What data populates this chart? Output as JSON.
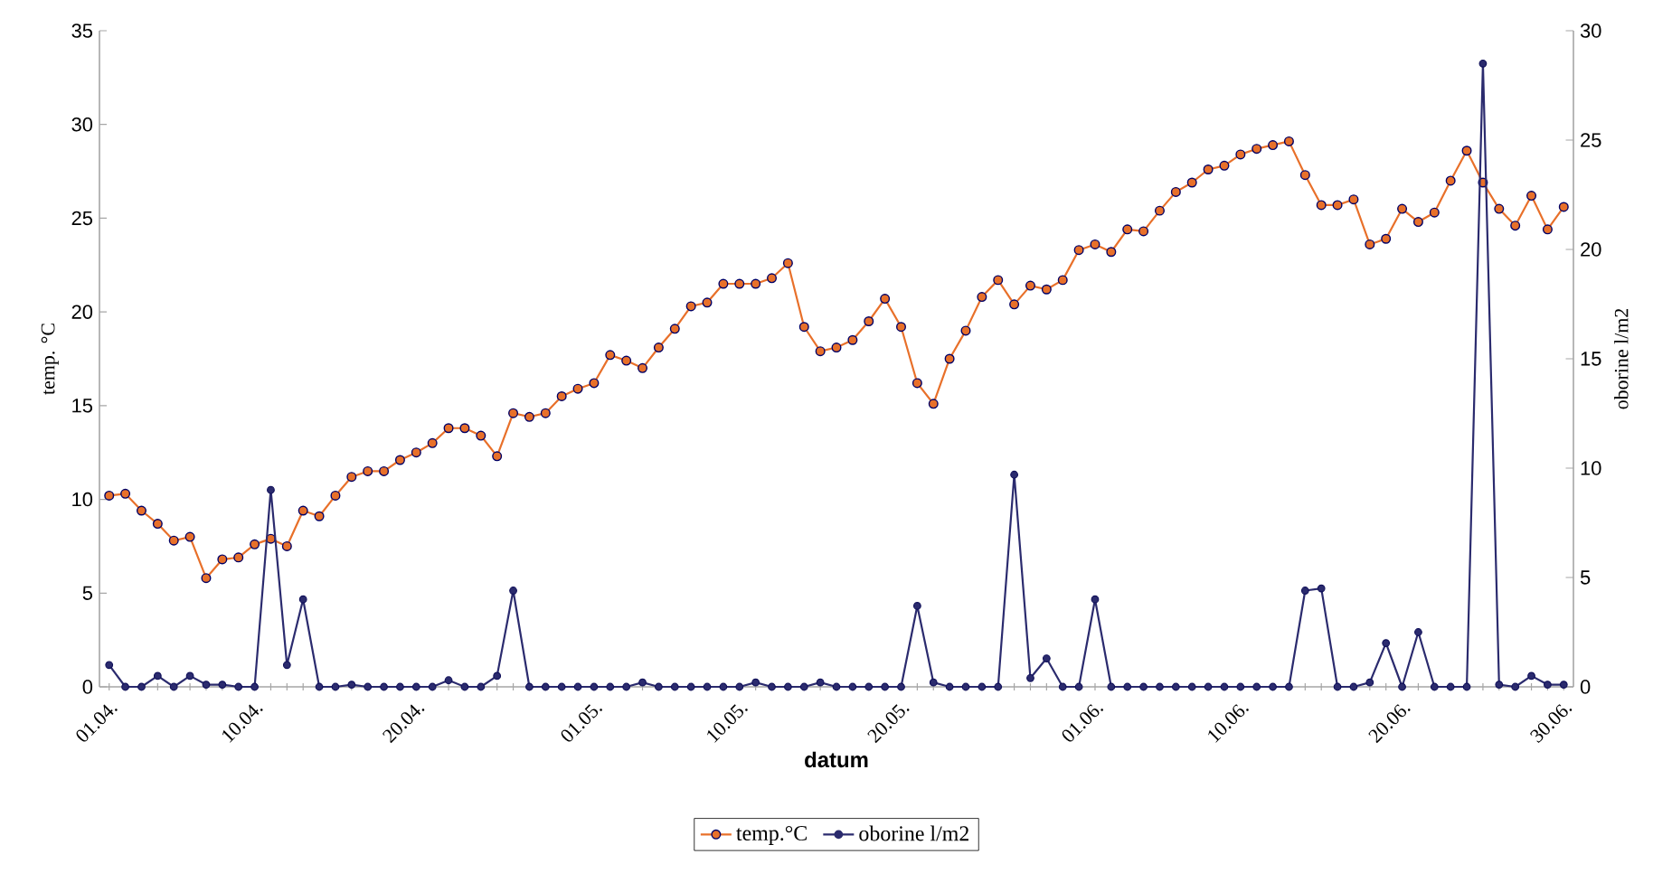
{
  "chart_data": {
    "type": "line",
    "categories": [
      "01.04.",
      null,
      null,
      null,
      null,
      null,
      null,
      null,
      null,
      "10.04.",
      null,
      null,
      null,
      null,
      null,
      null,
      null,
      null,
      null,
      "20.04.",
      null,
      null,
      null,
      null,
      null,
      null,
      null,
      null,
      null,
      null,
      "01.05.",
      null,
      null,
      null,
      null,
      null,
      null,
      null,
      null,
      "10.05.",
      null,
      null,
      null,
      null,
      null,
      null,
      null,
      null,
      null,
      "20.05.",
      null,
      null,
      null,
      null,
      null,
      null,
      null,
      null,
      null,
      null,
      null,
      "01.06.",
      null,
      null,
      null,
      null,
      null,
      null,
      null,
      null,
      "10.06.",
      null,
      null,
      null,
      null,
      null,
      null,
      null,
      null,
      null,
      "20.06.",
      null,
      null,
      null,
      null,
      null,
      null,
      null,
      null,
      null,
      "30.06."
    ],
    "series": [
      {
        "name": "temp.°C",
        "color": "#e8702a",
        "values": [
          10.2,
          10.3,
          9.4,
          8.7,
          7.8,
          8.0,
          5.8,
          6.8,
          6.9,
          7.6,
          7.9,
          7.5,
          9.4,
          9.1,
          10.2,
          11.2,
          11.5,
          11.5,
          12.1,
          12.5,
          13.0,
          13.8,
          13.8,
          13.4,
          12.3,
          14.6,
          14.4,
          14.6,
          15.5,
          15.9,
          16.2,
          17.7,
          17.4,
          17.0,
          18.1,
          19.1,
          20.3,
          20.5,
          21.5,
          21.5,
          21.5,
          21.8,
          22.6,
          19.2,
          17.9,
          18.1,
          18.5,
          19.5,
          20.7,
          19.2,
          16.2,
          15.1,
          17.5,
          19.0,
          20.8,
          21.7,
          20.4,
          21.4,
          21.2,
          21.7,
          23.3,
          23.6,
          23.2,
          24.4,
          24.3,
          25.4,
          26.4,
          26.9,
          27.6,
          27.8,
          28.4,
          28.7,
          28.9,
          29.1,
          27.3,
          25.7,
          25.7,
          26.0,
          23.6,
          23.9,
          25.5,
          24.8,
          25.3,
          27.0,
          28.6,
          26.9,
          25.5,
          24.6,
          26.2,
          24.4,
          25.6
        ]
      },
      {
        "name": "oborine l/m2",
        "color": "#2b2b6e",
        "axis": "y2",
        "values": [
          1.0,
          0,
          0,
          0.5,
          0,
          0.5,
          0.1,
          0.1,
          0,
          0,
          9.0,
          1.0,
          4.0,
          0,
          0,
          0.1,
          0,
          0,
          0,
          0,
          0,
          0.3,
          0,
          0,
          0.5,
          4.4,
          0,
          0,
          0,
          0,
          0,
          0,
          0,
          0.2,
          0,
          0,
          0,
          0,
          0,
          0,
          0.2,
          0,
          0,
          0,
          0.2,
          0,
          0,
          0,
          0,
          0,
          3.7,
          0.2,
          0,
          0,
          0,
          0,
          9.7,
          0.4,
          1.3,
          0,
          0,
          4.0,
          0,
          0,
          0,
          0,
          0,
          0,
          0,
          0,
          0,
          0,
          0,
          0,
          4.4,
          4.5,
          0,
          0,
          0.2,
          2.0,
          0,
          2.5,
          0,
          0,
          0,
          28.5,
          0.1,
          0,
          0.5,
          0.1,
          0.1
        ]
      }
    ],
    "xlabel": "datum",
    "ylabel": "temp. °C",
    "y2label": "oborine l/m2",
    "ylim": [
      0,
      35
    ],
    "yticks": [
      0,
      5,
      10,
      15,
      20,
      25,
      30,
      35
    ],
    "y2lim": [
      0,
      30
    ],
    "y2ticks": [
      0,
      5,
      10,
      15,
      20,
      25,
      30
    ],
    "legend": "bottom",
    "marker": "circle",
    "line_style": "solid"
  }
}
